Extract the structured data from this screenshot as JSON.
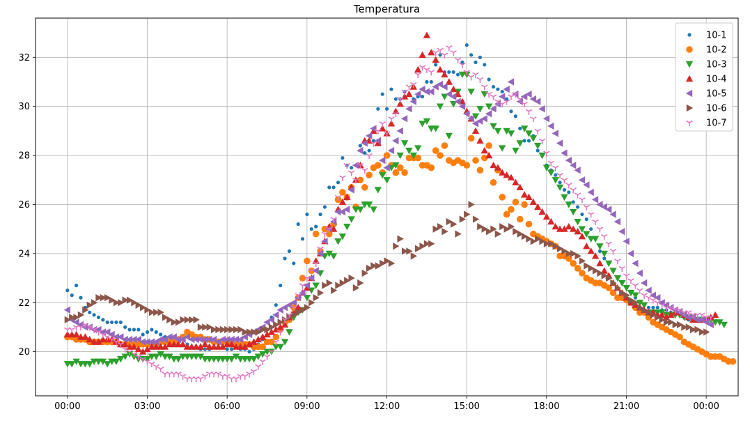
{
  "chart_data": {
    "type": "scatter",
    "title": "Temperatura",
    "xlabel": "",
    "ylabel": "",
    "xlim": [
      -1.2,
      25.2
    ],
    "ylim": [
      18.2,
      33.6
    ],
    "grid": true,
    "legend_position": "top-right",
    "x_ticks": [
      {
        "value": 0,
        "label": "00:00"
      },
      {
        "value": 3,
        "label": "03:00"
      },
      {
        "value": 6,
        "label": "06:00"
      },
      {
        "value": 9,
        "label": "09:00"
      },
      {
        "value": 12,
        "label": "12:00"
      },
      {
        "value": 15,
        "label": "15:00"
      },
      {
        "value": 18,
        "label": "18:00"
      },
      {
        "value": 21,
        "label": "21:00"
      },
      {
        "value": 24,
        "label": "00:00"
      }
    ],
    "y_ticks": [
      {
        "value": 20,
        "label": "20"
      },
      {
        "value": 22,
        "label": "22"
      },
      {
        "value": 24,
        "label": "24"
      },
      {
        "value": 26,
        "label": "26"
      },
      {
        "value": 28,
        "label": "28"
      },
      {
        "value": 30,
        "label": "30"
      },
      {
        "value": 32,
        "label": "32"
      }
    ],
    "sampling": {
      "start_hour": 0,
      "step_hours": 0.1667
    },
    "series": [
      {
        "name": "10-1",
        "marker": "point",
        "color": "#1f77b4",
        "values": [
          22.5,
          22.3,
          22.7,
          22.2,
          21.8,
          21.6,
          21.5,
          21.4,
          21.3,
          21.2,
          21.2,
          21.2,
          21.2,
          21.0,
          20.9,
          20.9,
          20.9,
          20.7,
          20.8,
          20.9,
          20.8,
          20.7,
          20.6,
          20.6,
          20.5,
          20.4,
          20.3,
          20.3,
          20.2,
          20.2,
          20.1,
          20.1,
          20.1,
          20.2,
          20.2,
          20.2,
          20.1,
          20.1,
          20.2,
          20.1,
          20.1,
          20.0,
          20.1,
          20.3,
          20.5,
          20.9,
          21.4,
          21.9,
          22.7,
          23.8,
          24.1,
          23.6,
          25.2,
          24.6,
          25.6,
          25.0,
          25.1,
          25.6,
          25.9,
          26.7,
          26.7,
          26.9,
          27.9,
          27.6,
          27.5,
          27.6,
          28.4,
          28.1,
          28.2,
          28.6,
          29.9,
          30.5,
          29.9,
          30.7,
          30.3,
          30.3,
          30.6,
          30.5,
          30.3,
          30.4,
          30.4,
          31.0,
          31.0,
          31.7,
          32.1,
          31.4,
          31.4,
          31.4,
          31.3,
          31.8,
          32.5,
          32.1,
          31.8,
          32.0,
          31.7,
          31.1,
          30.8,
          30.7,
          30.6,
          30.3,
          29.8,
          29.6,
          29.1,
          28.6,
          28.6,
          28.8,
          28.2,
          28.0,
          27.6,
          27.4,
          27.2,
          26.9,
          26.6,
          26.5,
          26.1,
          25.9,
          25.6,
          25.4,
          25.0,
          24.6,
          24.1,
          23.8,
          23.6,
          23.3,
          23.0,
          22.8,
          22.6,
          22.4,
          22.2,
          22.0,
          21.9,
          21.8,
          21.8,
          21.8,
          21.7,
          21.7,
          21.6,
          21.5,
          21.5,
          21.4,
          21.3,
          21.3,
          21.3,
          21.3
        ]
      },
      {
        "name": "10-2",
        "marker": "circle",
        "color": "#ff7f0e",
        "values": [
          20.6,
          20.6,
          20.5,
          20.5,
          20.5,
          20.4,
          20.4,
          20.4,
          20.4,
          20.4,
          20.4,
          20.4,
          20.3,
          20.3,
          20.3,
          20.3,
          20.3,
          20.3,
          20.3,
          20.3,
          20.3,
          20.4,
          20.4,
          20.4,
          20.4,
          20.5,
          20.6,
          20.8,
          20.7,
          20.6,
          20.6,
          20.5,
          20.5,
          20.4,
          20.4,
          20.4,
          20.4,
          20.3,
          20.3,
          20.3,
          20.3,
          20.3,
          20.2,
          20.2,
          20.2,
          20.4,
          20.4,
          20.6,
          20.9,
          21.2,
          21.3,
          21.8,
          22.2,
          23.0,
          23.7,
          23.3,
          24.8,
          24.1,
          25.0,
          24.8,
          25.2,
          26.2,
          26.5,
          26.3,
          26.7,
          25.9,
          27.0,
          26.7,
          27.2,
          27.5,
          27.6,
          27.3,
          28.0,
          27.6,
          27.3,
          27.5,
          27.3,
          27.9,
          27.9,
          27.9,
          27.6,
          27.6,
          27.5,
          28.2,
          28.0,
          28.4,
          27.8,
          27.7,
          27.8,
          27.7,
          27.6,
          28.7,
          27.8,
          27.4,
          27.9,
          28.4,
          26.9,
          27.4,
          26.3,
          25.6,
          25.8,
          26.1,
          25.4,
          26.0,
          25.2,
          24.8,
          24.7,
          24.6,
          24.5,
          24.4,
          24.3,
          23.9,
          23.9,
          23.8,
          23.6,
          23.4,
          23.2,
          23.0,
          22.9,
          22.8,
          22.8,
          22.7,
          22.6,
          22.4,
          22.2,
          22.2,
          22.1,
          22.0,
          21.8,
          21.6,
          21.6,
          21.4,
          21.2,
          21.1,
          21.0,
          20.9,
          20.8,
          20.7,
          20.6,
          20.4,
          20.3,
          20.2,
          20.1,
          20.0,
          19.9,
          19.8,
          19.8,
          19.8,
          19.7,
          19.6,
          19.6
        ]
      },
      {
        "name": "10-3",
        "marker": "triangle-down",
        "color": "#2ca02c",
        "values": [
          19.5,
          19.5,
          19.6,
          19.5,
          19.5,
          19.5,
          19.6,
          19.6,
          19.6,
          19.5,
          19.6,
          19.6,
          19.7,
          19.8,
          19.9,
          19.8,
          19.7,
          19.7,
          19.7,
          19.8,
          19.8,
          19.9,
          19.8,
          19.8,
          19.7,
          19.7,
          19.8,
          19.8,
          19.8,
          19.8,
          19.8,
          19.7,
          19.7,
          19.7,
          19.7,
          19.7,
          19.7,
          19.7,
          19.8,
          19.7,
          19.7,
          19.7,
          19.7,
          19.8,
          19.9,
          20.0,
          20.0,
          20.2,
          20.2,
          20.4,
          20.8,
          21.4,
          21.6,
          21.7,
          22.2,
          22.5,
          22.7,
          23.2,
          23.9,
          24.0,
          23.9,
          24.5,
          24.7,
          25.1,
          25.4,
          25.8,
          25.8,
          26.0,
          26.0,
          25.8,
          26.6,
          27.2,
          27.0,
          27.5,
          27.6,
          28.0,
          28.5,
          28.2,
          28.0,
          28.3,
          29.3,
          29.4,
          29.1,
          29.1,
          30.0,
          30.4,
          28.8,
          30.1,
          30.6,
          31.3,
          31.3,
          30.6,
          29.6,
          29.9,
          30.5,
          30.0,
          29.2,
          29.0,
          28.3,
          29.0,
          28.9,
          28.2,
          28.5,
          29.1,
          28.9,
          28.7,
          28.4,
          28.0,
          27.5,
          27.3,
          27.0,
          26.7,
          26.3,
          26.0,
          25.7,
          25.3,
          25.0,
          24.8,
          24.6,
          24.6,
          24.3,
          24.0,
          23.6,
          23.3,
          23.0,
          22.8,
          22.6,
          22.4,
          22.3,
          22.0,
          21.9,
          21.6,
          21.6,
          21.6,
          21.6,
          21.5,
          21.5,
          21.5,
          21.5,
          21.4,
          21.4,
          21.4,
          21.3,
          21.3,
          21.3,
          21.3,
          21.2,
          21.2,
          21.1
        ]
      },
      {
        "name": "10-4",
        "marker": "triangle-up",
        "color": "#d62728",
        "values": [
          20.7,
          20.7,
          20.7,
          20.6,
          20.6,
          20.5,
          20.4,
          20.4,
          20.5,
          20.5,
          20.5,
          20.4,
          20.3,
          20.3,
          20.2,
          20.2,
          20.1,
          20.0,
          20.1,
          20.2,
          20.2,
          20.2,
          20.2,
          20.3,
          20.3,
          20.3,
          20.3,
          20.2,
          20.2,
          20.2,
          20.2,
          20.3,
          20.2,
          20.2,
          20.2,
          20.2,
          20.3,
          20.3,
          20.2,
          20.2,
          20.2,
          20.3,
          20.4,
          20.5,
          20.6,
          20.7,
          20.8,
          20.9,
          21.0,
          21.1,
          21.4,
          21.6,
          21.8,
          22.4,
          22.6,
          23.0,
          23.7,
          24.0,
          24.5,
          25.1,
          25.0,
          25.8,
          26.1,
          26.3,
          26.7,
          27.0,
          27.6,
          28.6,
          28.6,
          29.0,
          28.5,
          29.1,
          28.9,
          29.3,
          29.8,
          30.1,
          30.4,
          30.5,
          30.8,
          31.5,
          32.1,
          32.9,
          32.2,
          31.9,
          31.5,
          31.3,
          31.0,
          30.7,
          30.5,
          30.2,
          29.8,
          29.5,
          29.0,
          28.6,
          28.2,
          28.0,
          27.6,
          27.5,
          27.3,
          27.2,
          27.1,
          26.9,
          26.7,
          26.4,
          26.3,
          26.1,
          25.9,
          25.7,
          25.5,
          25.3,
          25.1,
          25.0,
          25.0,
          25.1,
          25.0,
          24.9,
          24.7,
          24.3,
          24.1,
          23.9,
          23.6,
          23.3,
          23.1,
          22.8,
          22.6,
          22.4,
          22.2,
          22.0,
          21.9,
          21.8,
          21.7,
          21.6,
          21.6,
          21.5,
          21.5,
          21.4,
          21.5,
          21.6,
          21.6,
          21.5,
          21.4,
          21.3,
          21.3,
          21.3,
          21.3,
          21.4,
          21.5
        ]
      },
      {
        "name": "10-5",
        "marker": "triangle-left",
        "color": "#9467bd",
        "values": [
          21.7,
          21.3,
          21.2,
          21.1,
          21.0,
          21.0,
          20.9,
          20.9,
          20.8,
          20.8,
          20.7,
          20.6,
          20.6,
          20.5,
          20.5,
          20.5,
          20.5,
          20.4,
          20.4,
          20.4,
          20.4,
          20.5,
          20.5,
          20.6,
          20.6,
          20.5,
          20.5,
          20.6,
          20.5,
          20.5,
          20.5,
          20.5,
          20.5,
          20.5,
          20.4,
          20.5,
          20.5,
          20.5,
          20.5,
          20.5,
          20.6,
          20.7,
          20.8,
          20.9,
          21.0,
          21.2,
          21.3,
          21.5,
          21.7,
          21.8,
          21.9,
          22.0,
          22.2,
          22.4,
          22.7,
          23.0,
          23.3,
          24.0,
          24.5,
          25.0,
          25.3,
          25.7,
          25.7,
          25.8,
          26.6,
          27.6,
          28.2,
          28.5,
          28.8,
          29.1,
          28.6,
          27.8,
          27.5,
          28.2,
          28.6,
          29.0,
          29.5,
          29.9,
          30.2,
          30.5,
          30.7,
          30.6,
          30.6,
          30.8,
          30.9,
          30.8,
          30.5,
          30.4,
          30.2,
          30.0,
          29.7,
          29.5,
          29.3,
          29.4,
          29.5,
          29.7,
          29.9,
          30.1,
          30.4,
          30.7,
          31.0,
          30.5,
          30.2,
          30.4,
          30.5,
          30.3,
          30.2,
          29.9,
          29.5,
          29.2,
          28.9,
          28.5,
          28.1,
          27.8,
          27.6,
          27.4,
          27.0,
          26.8,
          26.5,
          26.2,
          26.0,
          25.9,
          25.8,
          25.6,
          25.3,
          24.9,
          24.5,
          24.0,
          23.6,
          23.2,
          22.8,
          22.5,
          22.3,
          22.2,
          22.0,
          21.9,
          21.8,
          21.7,
          21.6,
          21.5,
          21.4,
          21.4,
          21.3,
          21.3,
          21.2,
          21.1
        ]
      },
      {
        "name": "10-6",
        "marker": "triangle-right",
        "color": "#8c564b",
        "values": [
          21.3,
          21.4,
          21.4,
          21.5,
          21.7,
          21.9,
          22.0,
          22.2,
          22.2,
          22.2,
          22.1,
          22.0,
          22.0,
          22.1,
          22.1,
          22.0,
          21.9,
          21.8,
          21.7,
          21.6,
          21.6,
          21.6,
          21.4,
          21.3,
          21.2,
          21.2,
          21.3,
          21.3,
          21.3,
          21.3,
          21.0,
          21.0,
          21.0,
          20.9,
          20.9,
          20.9,
          20.9,
          20.9,
          20.9,
          20.9,
          20.8,
          20.8,
          20.8,
          20.8,
          20.9,
          20.9,
          21.0,
          21.1,
          21.2,
          21.3,
          21.4,
          21.5,
          21.6,
          21.7,
          21.8,
          22.0,
          22.2,
          22.4,
          22.7,
          22.8,
          22.5,
          22.7,
          22.8,
          22.9,
          23.0,
          22.6,
          22.8,
          23.2,
          23.4,
          23.5,
          23.5,
          23.6,
          23.7,
          23.6,
          24.3,
          24.6,
          24.1,
          24.1,
          23.9,
          24.2,
          24.3,
          24.4,
          24.4,
          25.0,
          25.1,
          24.9,
          25.3,
          25.2,
          24.8,
          25.4,
          25.6,
          26.0,
          25.4,
          25.1,
          25.0,
          24.9,
          25.0,
          24.8,
          25.1,
          25.0,
          25.1,
          24.9,
          24.8,
          24.7,
          24.6,
          24.5,
          24.6,
          24.5,
          24.4,
          24.4,
          24.3,
          24.2,
          24.1,
          24.0,
          24.0,
          23.9,
          23.7,
          23.5,
          23.4,
          23.3,
          23.2,
          23.1,
          23.0,
          22.8,
          22.6,
          22.4,
          22.3,
          22.1,
          22.0,
          21.8,
          21.7,
          21.6,
          21.5,
          21.4,
          21.3,
          21.2,
          21.2,
          21.1,
          21.1,
          21.0,
          21.0,
          20.9,
          20.9,
          20.8,
          20.8
        ]
      },
      {
        "name": "10-7",
        "marker": "tri-down",
        "color": "#e377c2",
        "values": [
          20.9,
          20.9,
          21.0,
          21.0,
          21.1,
          21.0,
          20.9,
          20.8,
          20.7,
          20.6,
          20.5,
          20.4,
          20.3,
          20.1,
          20.0,
          19.9,
          19.8,
          19.7,
          19.6,
          19.5,
          19.4,
          19.3,
          19.1,
          19.1,
          19.1,
          19.1,
          19.0,
          18.9,
          18.9,
          18.9,
          18.9,
          19.0,
          19.1,
          19.1,
          19.1,
          19.0,
          19.0,
          18.9,
          18.9,
          19.0,
          19.0,
          19.1,
          19.2,
          19.4,
          19.6,
          19.8,
          20.0,
          20.4,
          20.8,
          21.3,
          21.5,
          21.8,
          22.3,
          22.7,
          23.0,
          23.3,
          23.6,
          24.2,
          24.8,
          25.0,
          25.4,
          26.3,
          27.1,
          27.6,
          27.3,
          27.0,
          27.6,
          27.4,
          28.0,
          28.5,
          29.0,
          29.3,
          28.9,
          29.5,
          29.7,
          30.3,
          30.6,
          30.8,
          30.9,
          31.3,
          31.6,
          31.5,
          31.4,
          32.2,
          32.3,
          32.1,
          32.4,
          32.2,
          31.9,
          31.7,
          31.4,
          31.2,
          31.3,
          31.1,
          30.8,
          30.5,
          30.4,
          30.2,
          30.1,
          30.2,
          30.4,
          30.5,
          30.3,
          30.1,
          29.8,
          29.5,
          29.0,
          28.6,
          28.1,
          27.7,
          27.5,
          27.2,
          27.0,
          26.8,
          26.6,
          26.4,
          26.2,
          25.9,
          25.6,
          25.3,
          25.0,
          24.7,
          24.4,
          24.1,
          23.7,
          23.4,
          23.1,
          22.9,
          22.7,
          22.5,
          22.3,
          22.2,
          22.1,
          22.0,
          21.9,
          21.8,
          21.8,
          21.7,
          21.7,
          21.6,
          21.6,
          21.5,
          21.5,
          21.5,
          21.4,
          21.4
        ]
      }
    ]
  }
}
